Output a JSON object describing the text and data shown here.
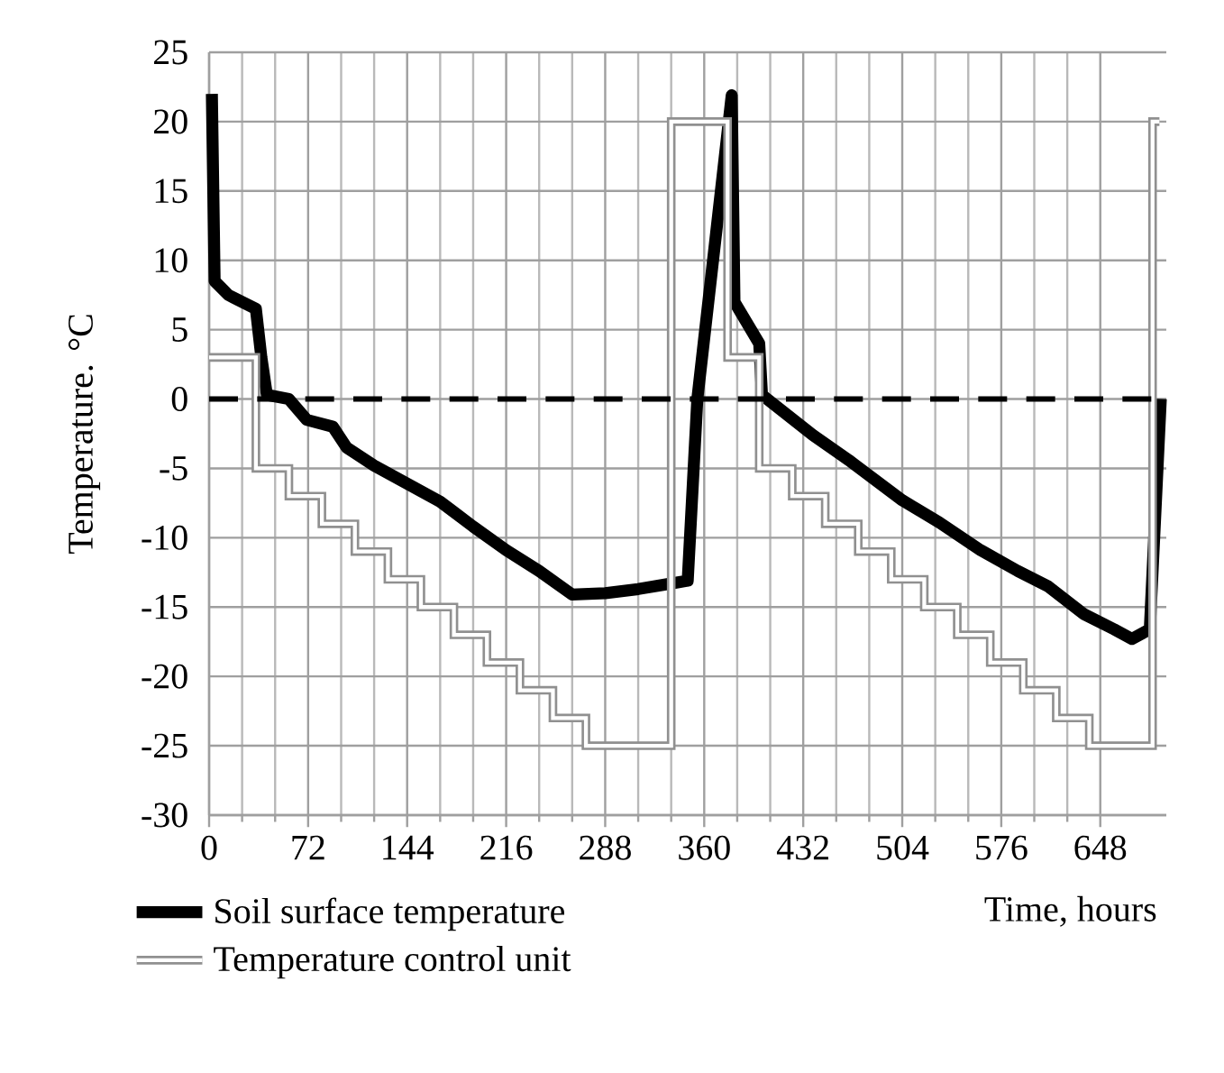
{
  "chart_data": {
    "type": "line",
    "xlabel": "Time, hours",
    "ylabel": "Temperature. °C",
    "xlim": [
      0,
      696
    ],
    "ylim": [
      -30,
      25
    ],
    "xticks": [
      0,
      72,
      144,
      216,
      288,
      360,
      432,
      504,
      576,
      648
    ],
    "yticks": [
      -30,
      -25,
      -20,
      -15,
      -10,
      -5,
      0,
      5,
      10,
      15,
      20,
      25
    ],
    "grid": true,
    "legend": "bottom",
    "ref_lines": [
      {
        "axis": "y",
        "value": 0,
        "color": "#000000",
        "line_style": "dashed"
      }
    ],
    "series": [
      {
        "name": "Soil surface temperature",
        "color": "#000000",
        "x": [
          2,
          4,
          14,
          34,
          38,
          42,
          58,
          71,
          90,
          100,
          120,
          144,
          168,
          192,
          216,
          240,
          264,
          288,
          312,
          336,
          348,
          355,
          380,
          382,
          400,
          402,
          439,
          465,
          504,
          531,
          561,
          588,
          610,
          636,
          658,
          671,
          684,
          692
        ],
        "values": [
          22,
          8.5,
          7.5,
          6.5,
          3,
          0.3,
          0,
          -1.5,
          -2,
          -3.5,
          -4.8,
          -6.1,
          -7.4,
          -9.2,
          -10.9,
          -12.4,
          -14.1,
          -14,
          -13.7,
          -13.3,
          -13.1,
          0,
          21.9,
          7,
          4,
          0.3,
          -2.6,
          -4.4,
          -7.3,
          -8.9,
          -10.9,
          -12.4,
          -13.5,
          -15.5,
          -16.6,
          -17.3,
          -16.6,
          0
        ]
      },
      {
        "name": "Temperature control unit",
        "color": "#909090",
        "type": "step",
        "x": [
          0,
          34,
          58,
          82,
          106,
          130,
          154,
          178,
          202,
          226,
          250,
          274,
          336,
          377,
          400,
          424,
          448,
          472,
          496,
          520,
          544,
          568,
          592,
          616,
          640,
          686,
          691
        ],
        "values": [
          3,
          -5,
          -7,
          -9,
          -11,
          -13,
          -15,
          -17,
          -19,
          -21,
          -23,
          -25,
          20,
          3,
          -5,
          -7,
          -9,
          -11,
          -13,
          -15,
          -17,
          -19,
          -21,
          -23,
          -25,
          20,
          20
        ]
      }
    ]
  }
}
